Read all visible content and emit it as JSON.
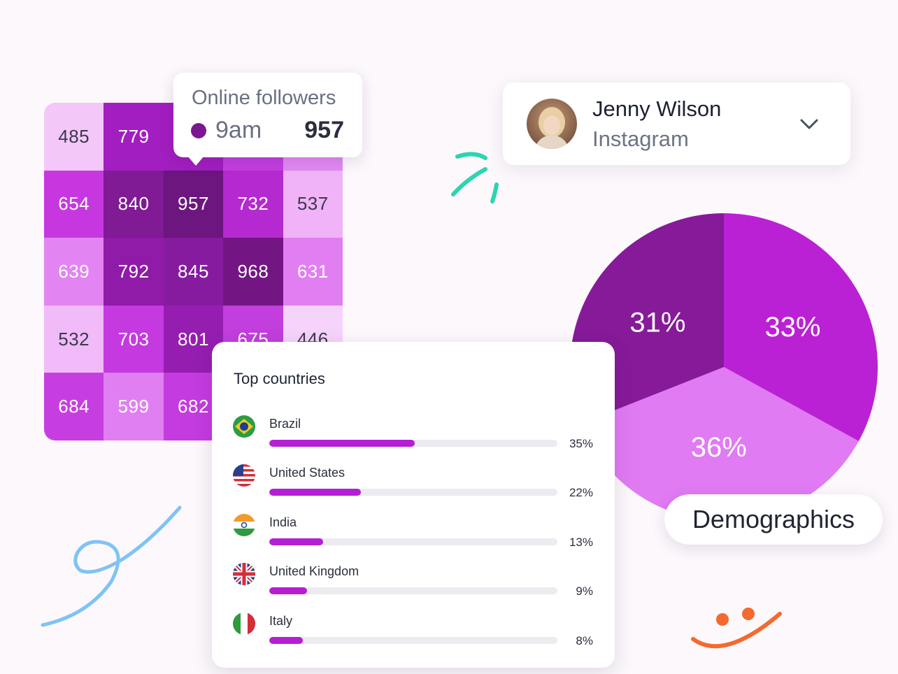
{
  "heatmap": {
    "cells": [
      {
        "v": "485",
        "c": "#f3c8f8",
        "dark": true
      },
      {
        "v": "779",
        "c": "#a21ec0",
        "dark": false
      },
      {
        "v": "",
        "c": "#a21ec0",
        "dark": false
      },
      {
        "v": "",
        "c": "#c43edf",
        "dark": false
      },
      {
        "v": "",
        "c": "#e28af2",
        "dark": false
      },
      {
        "v": "654",
        "c": "#c737e0",
        "dark": false
      },
      {
        "v": "840",
        "c": "#801a95",
        "dark": false
      },
      {
        "v": "957",
        "c": "#6e1680",
        "dark": false,
        "selected": true
      },
      {
        "v": "732",
        "c": "#b52ad0",
        "dark": false
      },
      {
        "v": "537",
        "c": "#f0b3f8",
        "dark": true
      },
      {
        "v": "639",
        "c": "#e285f3",
        "dark": false
      },
      {
        "v": "792",
        "c": "#8f1ba8",
        "dark": false
      },
      {
        "v": "845",
        "c": "#861ba0",
        "dark": false
      },
      {
        "v": "968",
        "c": "#731683",
        "dark": false
      },
      {
        "v": "631",
        "c": "#e17ff2",
        "dark": false
      },
      {
        "v": "532",
        "c": "#f1baf8",
        "dark": true
      },
      {
        "v": "703",
        "c": "#c53ae0",
        "dark": false
      },
      {
        "v": "801",
        "c": "#951eb0",
        "dark": false
      },
      {
        "v": "675",
        "c": "#c23edd",
        "dark": false
      },
      {
        "v": "446",
        "c": "#f5d3fa",
        "dark": true
      },
      {
        "v": "684",
        "c": "#c73ee0",
        "dark": false
      },
      {
        "v": "599",
        "c": "#e07ff2",
        "dark": false
      },
      {
        "v": "682",
        "c": "#c43cdf",
        "dark": false
      },
      {
        "v": "",
        "c": "#c43cdf",
        "dark": false
      },
      {
        "v": "",
        "c": "#e07ff2",
        "dark": false
      }
    ]
  },
  "tooltip": {
    "title": "Online followers",
    "time": "9am",
    "value": "957",
    "dot_color": "#7a1890"
  },
  "profile": {
    "name": "Jenny Wilson",
    "platform": "Instagram",
    "dropdown_icon": "chevron-down-icon"
  },
  "demographics": {
    "label": "Demographics",
    "slice_1": "31%",
    "slice_2": "33%",
    "slice_3": "36%"
  },
  "chart_data": {
    "type": "pie",
    "categories": [
      "31%",
      "33%",
      "36%"
    ],
    "values": [
      31,
      33,
      36
    ],
    "colors": [
      "#861a99",
      "#bb21d4",
      "#e07bf3"
    ]
  },
  "top_countries": {
    "title": "Top countries",
    "items": [
      {
        "name": "Brazil",
        "pct": "35%",
        "value": 0.35,
        "flag": "brazil-flag-icon"
      },
      {
        "name": "United States",
        "pct": "22%",
        "value": 0.22,
        "flag": "usa-flag-icon"
      },
      {
        "name": "India",
        "pct": "13%",
        "value": 0.13,
        "flag": "india-flag-icon"
      },
      {
        "name": "United Kingdom",
        "pct": "9%",
        "value": 0.09,
        "flag": "uk-flag-icon"
      },
      {
        "name": "Italy",
        "pct": "8%",
        "value": 0.08,
        "flag": "italy-flag-icon"
      }
    ]
  },
  "colors": {
    "accent": "#b51fd4",
    "teal_doodle": "#2dd4b0",
    "blue_doodle": "#7fc3f4",
    "orange_doodle": "#f46a2d"
  }
}
